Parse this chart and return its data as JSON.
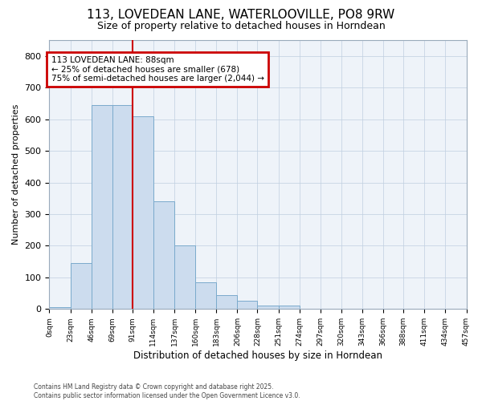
{
  "title_line1": "113, LOVEDEAN LANE, WATERLOOVILLE, PO8 9RW",
  "title_line2": "Size of property relative to detached houses in Horndean",
  "xlabel": "Distribution of detached houses by size in Horndean",
  "ylabel": "Number of detached properties",
  "bar_color": "#ccdcee",
  "bar_edge_color": "#7aaacc",
  "grid_color": "#c0cfe0",
  "vline_x": 91,
  "vline_color": "#cc0000",
  "annotation_text": "113 LOVEDEAN LANE: 88sqm\n← 25% of detached houses are smaller (678)\n75% of semi-detached houses are larger (2,044) →",
  "annotation_edge_color": "#cc0000",
  "bin_edges": [
    0,
    23,
    46,
    69,
    91,
    114,
    137,
    160,
    183,
    206,
    228,
    251,
    274,
    297,
    320,
    343,
    366,
    388,
    411,
    434,
    457
  ],
  "bar_heights": [
    5,
    145,
    645,
    645,
    610,
    340,
    200,
    85,
    43,
    27,
    10,
    10,
    2,
    0,
    0,
    0,
    0,
    0,
    0,
    2
  ],
  "ylim": [
    0,
    850
  ],
  "yticks": [
    0,
    100,
    200,
    300,
    400,
    500,
    600,
    700,
    800
  ],
  "xtick_labels": [
    "0sqm",
    "23sqm",
    "46sqm",
    "69sqm",
    "91sqm",
    "114sqm",
    "137sqm",
    "160sqm",
    "183sqm",
    "206sqm",
    "228sqm",
    "251sqm",
    "274sqm",
    "297sqm",
    "320sqm",
    "343sqm",
    "366sqm",
    "388sqm",
    "411sqm",
    "434sqm",
    "457sqm"
  ],
  "footer_text": "Contains HM Land Registry data © Crown copyright and database right 2025.\nContains public sector information licensed under the Open Government Licence v3.0.",
  "bg_color": "#eef3f9"
}
